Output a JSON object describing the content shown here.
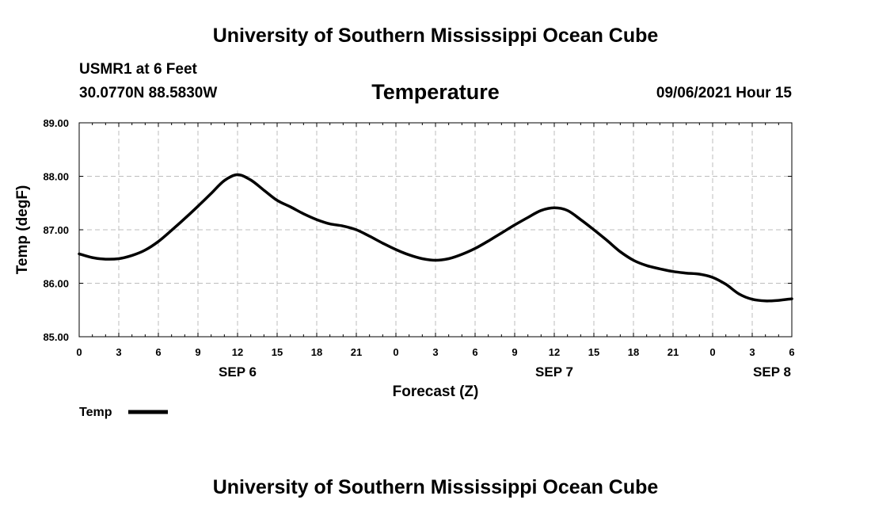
{
  "header": {
    "title_top": "University of Southern Mississippi Ocean Cube",
    "station": "USMR1 at 6 Feet",
    "coords": "30.0770N  88.5830W",
    "datetime": "09/06/2021 Hour 15",
    "title_bottom": "University of Southern Mississippi Ocean Cube"
  },
  "chart_data": {
    "type": "line",
    "title": "Temperature",
    "xlabel": "Forecast (Z)",
    "ylabel": "Temp (degF)",
    "ylim": [
      85.0,
      89.0
    ],
    "yticks": [
      "85.00",
      "86.00",
      "87.00",
      "88.00",
      "89.00"
    ],
    "xlim": [
      0,
      54
    ],
    "xticks": [
      "0",
      "3",
      "6",
      "9",
      "12",
      "15",
      "18",
      "21",
      "0",
      "3",
      "6",
      "9",
      "12",
      "15",
      "18",
      "21",
      "0",
      "3",
      "6"
    ],
    "date_labels": [
      {
        "label": "SEP 6",
        "at": 12
      },
      {
        "label": "SEP 7",
        "at": 36
      },
      {
        "label": "SEP 8",
        "at": 52.5
      }
    ],
    "grid": true,
    "legend_position": "bottom-left",
    "series": [
      {
        "name": "Temp",
        "color": "#000000",
        "x": [
          0,
          1,
          2,
          3,
          4,
          5,
          6,
          7,
          8,
          9,
          10,
          11,
          12,
          13,
          14,
          15,
          16,
          17,
          18,
          19,
          20,
          21,
          22,
          23,
          24,
          25,
          26,
          27,
          28,
          29,
          30,
          31,
          32,
          33,
          34,
          35,
          36,
          37,
          38,
          39,
          40,
          41,
          42,
          43,
          44,
          45,
          46,
          47,
          48,
          49,
          50,
          51,
          52,
          53,
          54
        ],
        "values": [
          86.55,
          86.48,
          86.45,
          86.46,
          86.52,
          86.62,
          86.78,
          86.99,
          87.21,
          87.44,
          87.68,
          87.92,
          88.03,
          87.93,
          87.74,
          87.55,
          87.43,
          87.3,
          87.19,
          87.11,
          87.07,
          87.0,
          86.88,
          86.75,
          86.63,
          86.53,
          86.46,
          86.43,
          86.46,
          86.54,
          86.65,
          86.79,
          86.94,
          87.09,
          87.23,
          87.36,
          87.41,
          87.36,
          87.19,
          87.0,
          86.8,
          86.59,
          86.43,
          86.33,
          86.27,
          86.22,
          86.19,
          86.17,
          86.11,
          85.98,
          85.8,
          85.7,
          85.67,
          85.68,
          85.71
        ]
      }
    ]
  }
}
